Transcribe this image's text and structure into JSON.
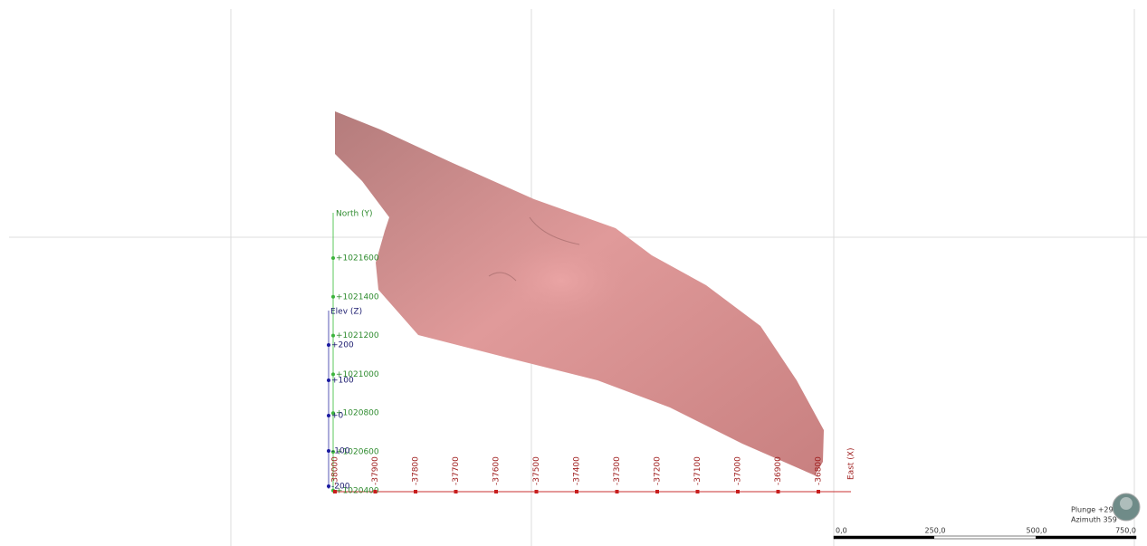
{
  "viewer": {
    "north_axis": {
      "label": "North (Y)",
      "ticks": [
        "+1021600",
        "+1021400",
        "+1021200",
        "+1021000",
        "+1020800",
        "+1020600",
        "+1020400"
      ]
    },
    "elev_axis": {
      "label": "Elev (Z)",
      "ticks": [
        "+200",
        "+100",
        "+0",
        "-100",
        "-200"
      ]
    },
    "east_axis": {
      "label": "East (X)",
      "ticks": [
        "-38000",
        "-37900",
        "-37800",
        "-37700",
        "-37600",
        "-37500",
        "-37400",
        "-37300",
        "-37200",
        "-37100",
        "-37000",
        "-36900",
        "-36800"
      ]
    },
    "orientation": {
      "plunge": "Plunge +29",
      "azimuth": "Azimuth 359"
    },
    "scale_bar": [
      "0,0",
      "250,0",
      "500,0",
      "750,0"
    ]
  }
}
